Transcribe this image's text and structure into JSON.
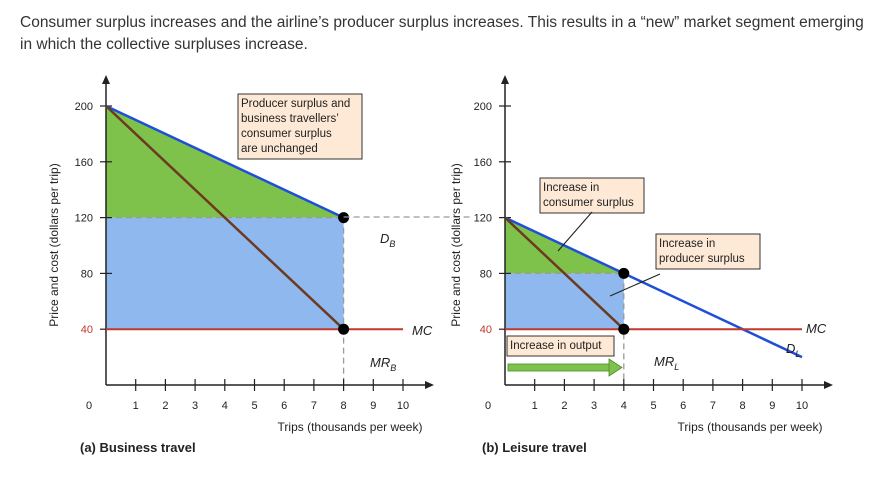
{
  "caption": "Consumer surplus increases and the airline’s producer surplus increases. This results in a “new” market segment emerging in which the collective surpluses increase.",
  "colors": {
    "demand": "#1f4fd6",
    "mr": "#6b3a1f",
    "mc": "#c0392b",
    "consumer_surplus": "#7fc24b",
    "producer_surplus": "#8fb8ef",
    "annotation_bg": "#fde9d6",
    "arrow": "#7fc24b",
    "dashed": "#9a9a9a"
  },
  "chart_data": [
    {
      "type": "line",
      "title": "(a) Business travel",
      "ylabel": "Price and cost (dollars per trip)",
      "xlabel": "Trips (thousands per week)",
      "xlim": [
        0,
        10
      ],
      "ylim": [
        0,
        200
      ],
      "x_ticks": [
        0,
        1,
        2,
        3,
        4,
        5,
        6,
        7,
        8,
        9,
        10
      ],
      "y_ticks": [
        40,
        80,
        120,
        160,
        200
      ],
      "series": [
        {
          "name": "D",
          "sub": "B",
          "kind": "demand",
          "x": [
            0,
            8
          ],
          "y": [
            200,
            120
          ]
        },
        {
          "name": "MR",
          "sub": "B",
          "kind": "mr",
          "x": [
            0,
            8
          ],
          "y": [
            200,
            40
          ]
        },
        {
          "name": "MC",
          "sub": "",
          "kind": "mc",
          "x": [
            0,
            10
          ],
          "y": [
            40,
            40
          ]
        }
      ],
      "points": [
        {
          "x": 8,
          "y": 120
        },
        {
          "x": 8,
          "y": 40
        }
      ],
      "annotations": [
        "Producer surplus and",
        "business travellers’",
        "consumer surplus",
        "are unchanged"
      ]
    },
    {
      "type": "line",
      "title": "(b) Leisure travel",
      "ylabel": "Price and cost (dollars per trip)",
      "xlabel": "Trips (thousands per week)",
      "xlim": [
        0,
        10
      ],
      "ylim": [
        0,
        200
      ],
      "x_ticks": [
        0,
        1,
        2,
        3,
        4,
        5,
        6,
        7,
        8,
        9,
        10
      ],
      "y_ticks": [
        40,
        80,
        120,
        160,
        200
      ],
      "series": [
        {
          "name": "D",
          "sub": "L",
          "kind": "demand",
          "x": [
            0,
            10
          ],
          "y": [
            120,
            20
          ]
        },
        {
          "name": "MR",
          "sub": "L",
          "kind": "mr",
          "x": [
            0,
            4
          ],
          "y": [
            120,
            40
          ]
        },
        {
          "name": "MC",
          "sub": "",
          "kind": "mc",
          "x": [
            0,
            10
          ],
          "y": [
            40,
            40
          ]
        }
      ],
      "points": [
        {
          "x": 4,
          "y": 80
        },
        {
          "x": 4,
          "y": 40
        }
      ],
      "annotations": {
        "consumer": [
          "Increase in",
          "consumer surplus"
        ],
        "producer": [
          "Increase in",
          "producer surplus"
        ],
        "output": "Increase in output"
      }
    }
  ]
}
